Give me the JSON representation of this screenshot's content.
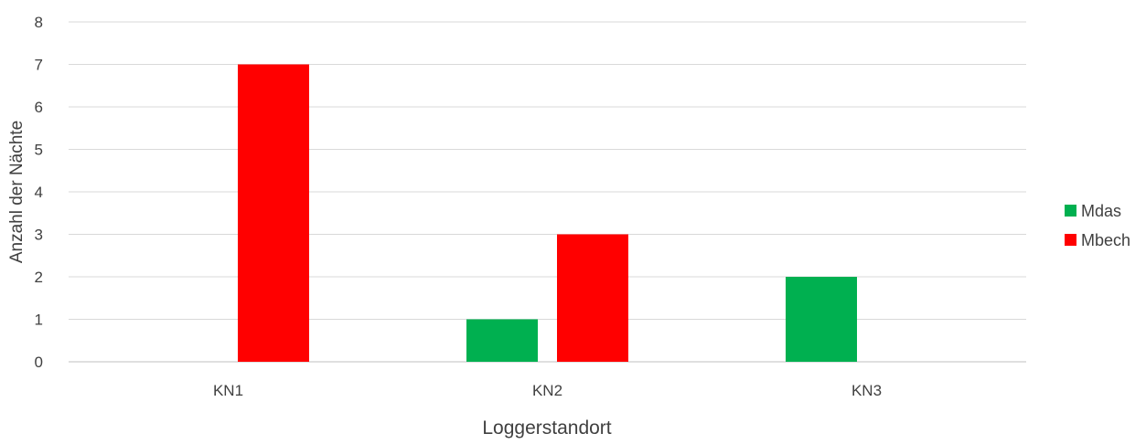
{
  "chart_data": {
    "type": "bar",
    "title": "",
    "xlabel": "Loggerstandort",
    "ylabel": "Anzahl der Nächte",
    "categories": [
      "KN1",
      "KN2",
      "KN3"
    ],
    "series": [
      {
        "name": "Mdas",
        "color": "#00b050",
        "values": [
          0,
          1,
          2
        ]
      },
      {
        "name": "Mbech",
        "color": "#ff0000",
        "values": [
          7,
          3,
          0
        ]
      }
    ],
    "ylim": [
      0,
      8
    ],
    "yticks": [
      "0",
      "1",
      "2",
      "3",
      "4",
      "5",
      "6",
      "7",
      "8"
    ],
    "grid": true,
    "legend_position": "right"
  }
}
